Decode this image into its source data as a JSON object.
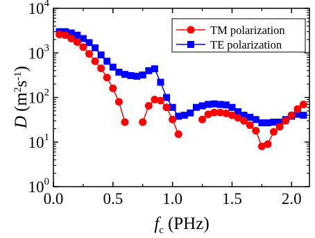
{
  "chart_data": {
    "type": "line",
    "xlabel": {
      "main": "f",
      "sub": "c",
      "unit": "(PHz)"
    },
    "ylabel": {
      "main": "D",
      "unit": "(m²s⁻¹)"
    },
    "x_ticks": [
      "0.0",
      "0.5",
      "1.0",
      "1.5",
      "2.0"
    ],
    "y_ticks": [
      {
        "base": "10",
        "exp": "0"
      },
      {
        "base": "10",
        "exp": "1"
      },
      {
        "base": "10",
        "exp": "2"
      },
      {
        "base": "10",
        "exp": "3"
      },
      {
        "base": "10",
        "exp": "4"
      }
    ],
    "xlim": [
      0.0,
      2.15
    ],
    "ylim": [
      1,
      10000
    ],
    "y_scale": "log",
    "grid": false,
    "legend_position": "top-right",
    "series": [
      {
        "name": "TM polarization",
        "color": "#ff0000",
        "marker": "circle",
        "x": [
          0.05,
          0.1,
          0.15,
          0.2,
          0.25,
          0.3,
          0.35,
          0.4,
          0.45,
          0.5,
          0.55,
          0.6,
          null,
          0.75,
          0.8,
          0.85,
          0.9,
          0.95,
          1.0,
          1.05,
          1.1,
          null,
          1.25,
          1.3,
          1.35,
          1.4,
          1.45,
          1.5,
          1.55,
          1.6,
          1.65,
          1.7,
          1.75,
          1.8,
          1.85,
          1.9,
          1.95,
          2.0,
          2.05,
          2.1
        ],
        "y": [
          2600,
          2500,
          2100,
          1750,
          1350,
          950,
          650,
          450,
          280,
          160,
          80,
          28,
          null,
          28,
          65,
          90,
          85,
          60,
          32,
          15,
          null,
          18,
          32,
          42,
          46,
          46,
          44,
          40,
          35,
          30,
          24,
          18,
          8,
          9,
          17,
          22,
          30,
          40,
          55,
          70
        ]
      },
      {
        "name": "TE polarization",
        "color": "#0000ff",
        "marker": "square",
        "x": [
          0.05,
          0.1,
          0.15,
          0.2,
          0.25,
          0.3,
          0.35,
          0.4,
          0.45,
          0.5,
          0.55,
          0.6,
          0.65,
          0.7,
          0.75,
          0.8,
          0.85,
          0.9,
          0.95,
          1.0,
          1.05,
          1.1,
          1.15,
          1.2,
          1.25,
          1.3,
          1.35,
          1.4,
          1.45,
          1.5,
          1.55,
          1.6,
          1.65,
          1.7,
          1.75,
          1.8,
          1.85,
          1.9,
          1.95,
          2.0,
          2.05,
          2.1
        ],
        "y": [
          3000,
          3000,
          2800,
          2500,
          2100,
          1700,
          1300,
          900,
          650,
          480,
          370,
          330,
          310,
          300,
          320,
          400,
          440,
          220,
          100,
          60,
          38,
          40,
          45,
          60,
          65,
          70,
          72,
          70,
          68,
          60,
          48,
          40,
          36,
          32,
          27,
          27,
          28,
          28,
          32,
          38,
          42,
          40
        ]
      }
    ]
  }
}
